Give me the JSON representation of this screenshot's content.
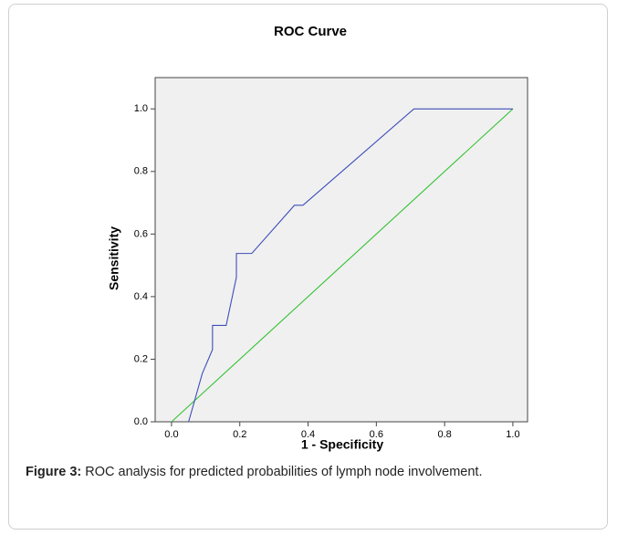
{
  "chart_data": {
    "type": "line",
    "title": "ROC Curve",
    "xlabel": "1 - Specificity",
    "ylabel": "Sensitivity",
    "xlim": [
      -0.048,
      1.043
    ],
    "ylim": [
      0,
      1.1
    ],
    "xticks": [
      {
        "value": 0,
        "label": "0.0"
      },
      0.2,
      0.4,
      0.6,
      0.8,
      {
        "value": 1,
        "label": "1.0"
      }
    ],
    "yticks": [
      {
        "value": 0,
        "label": "0.0"
      },
      0.2,
      0.4,
      0.6,
      0.8,
      {
        "value": 1,
        "label": "1.0"
      }
    ],
    "series": [
      {
        "color": "#3d4fb8",
        "x": [
          0.05,
          0.09,
          0.12,
          0.12,
          0.16,
          0.19,
          0.19,
          0.235,
          0.36,
          0.385,
          0.71,
          1.0
        ],
        "values": [
          0,
          0.154,
          0.231,
          0.308,
          0.308,
          0.462,
          0.538,
          0.538,
          0.692,
          0.692,
          1.0,
          1.0
        ]
      },
      {
        "color": "#33c233",
        "x": [
          0,
          1
        ],
        "values": [
          0,
          1
        ]
      }
    ]
  },
  "caption": {
    "label": "Figure 3:",
    "text": "ROC analysis for predicted probabilities of lymph node involvement."
  }
}
